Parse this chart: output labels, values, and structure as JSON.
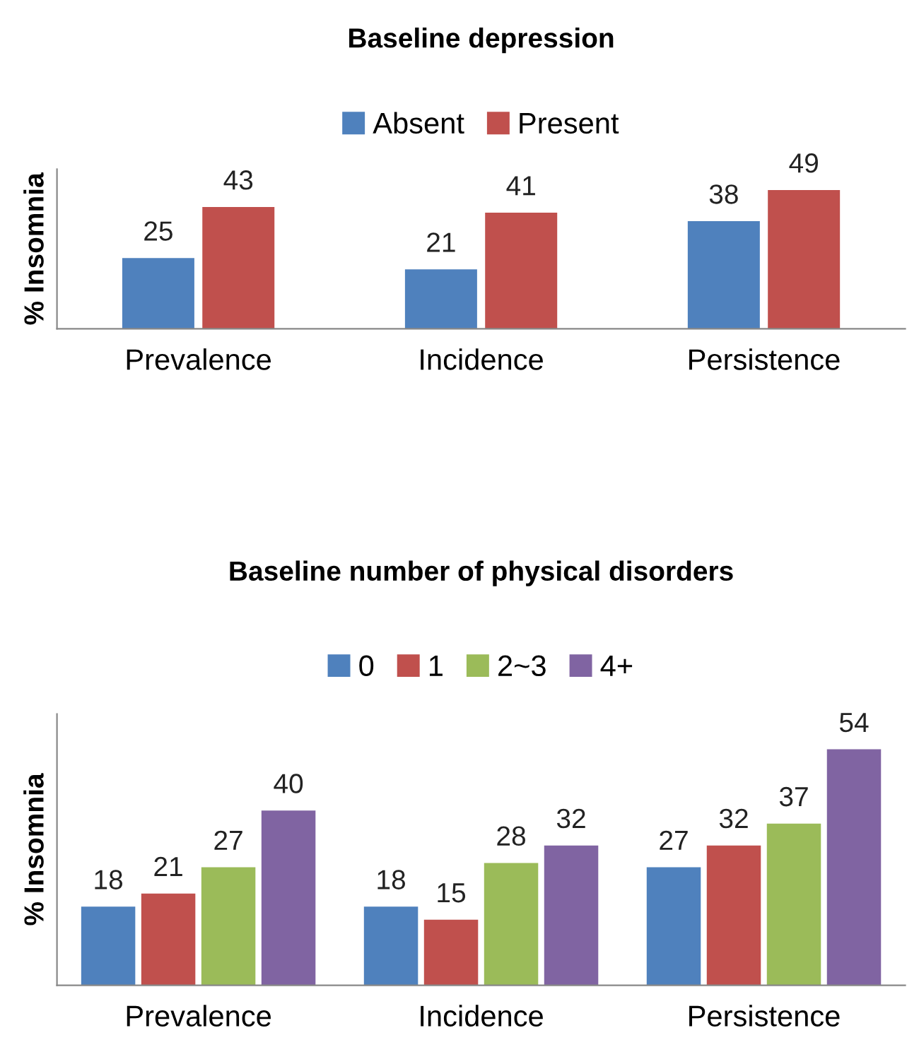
{
  "chart_data": [
    {
      "type": "bar",
      "title": "Baseline depression",
      "ylabel": "% Insomnia",
      "categories": [
        "Prevalence",
        "Incidence",
        "Persistence"
      ],
      "series": [
        {
          "name": "Absent",
          "color": "#4f81bd",
          "values": [
            25,
            21,
            38
          ]
        },
        {
          "name": "Present",
          "color": "#c0504d",
          "values": [
            43,
            41,
            49
          ]
        }
      ],
      "data_labels": true,
      "legend": "top",
      "grid": false,
      "tick_labels": "x"
    },
    {
      "type": "bar",
      "title": "Baseline number of physical disorders",
      "ylabel": "% Insomnia",
      "categories": [
        "Prevalence",
        "Incidence",
        "Persistence"
      ],
      "series": [
        {
          "name": "0",
          "color": "#4f81bd",
          "values": [
            18,
            18,
            27
          ]
        },
        {
          "name": "1",
          "color": "#c0504d",
          "values": [
            21,
            15,
            32
          ]
        },
        {
          "name": "2~3",
          "color": "#9bbb59",
          "values": [
            27,
            28,
            37
          ]
        },
        {
          "name": "4+",
          "color": "#8064a2",
          "values": [
            40,
            32,
            54
          ]
        }
      ],
      "data_labels": true,
      "legend": "top",
      "grid": false,
      "tick_labels": "x"
    }
  ]
}
